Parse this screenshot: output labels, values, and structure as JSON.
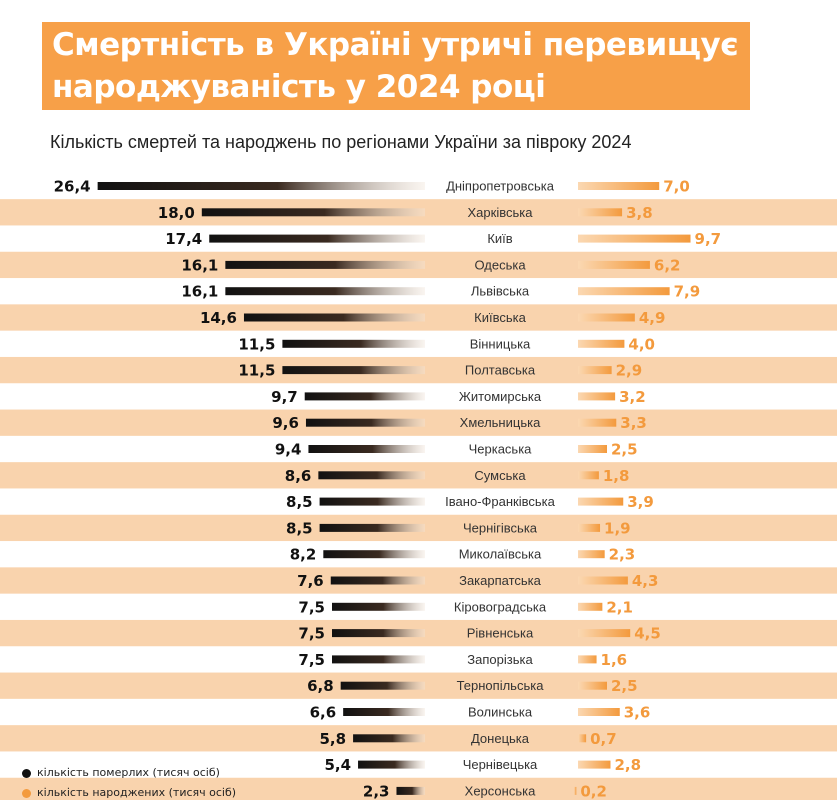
{
  "title": {
    "line1": "Смертність в Україні утричі перевищує",
    "line2": "народжуваність у 2024 році"
  },
  "subtitle": "Кількість смертей та народжень по регіонами України за півроку 2024",
  "colors": {
    "accent": "#f7a048",
    "stripe": "#f9d3ad",
    "deaths": "#111111",
    "births": "#f39a3d"
  },
  "legend": {
    "deaths_label": "кількість померлих (тисяч осіб)",
    "births_label": "кількість народжених (тисяч осіб)"
  },
  "chart_data": {
    "type": "bar",
    "title": "Смертність в Україні утричі перевищує народжуваність у 2024 році",
    "subtitle": "Кількість смертей та народжень по регіонами України за півроку 2024",
    "categories": [
      "Дніпропетровська",
      "Харківська",
      "Київ",
      "Одеська",
      "Львівська",
      "Київська",
      "Вінницька",
      "Полтавська",
      "Житомирська",
      "Хмельницька",
      "Черкаська",
      "Сумська",
      "Івано-Франківська",
      "Чернігівська",
      "Миколаївська",
      "Закарпатська",
      "Кіровоградська",
      "Рівненська",
      "Запорізька",
      "Тернопільська",
      "Волинська",
      "Донецька",
      "Чернівецька",
      "Херсонська"
    ],
    "series": [
      {
        "name": "кількість померлих (тисяч осіб)",
        "values": [
          26.4,
          18.0,
          17.4,
          16.1,
          16.1,
          14.6,
          11.5,
          11.5,
          9.7,
          9.6,
          9.4,
          8.6,
          8.5,
          8.5,
          8.2,
          7.6,
          7.5,
          7.5,
          7.5,
          6.8,
          6.6,
          5.8,
          5.4,
          2.3
        ],
        "labels": [
          "26,4",
          "18,0",
          "17,4",
          "16,1",
          "16,1",
          "14,6",
          "11,5",
          "11,5",
          "9,7",
          "9,6",
          "9,4",
          "8,6",
          "8,5",
          "8,5",
          "8,2",
          "7,6",
          "7,5",
          "7,5",
          "7,5",
          "6,8",
          "6,6",
          "5,8",
          "5,4",
          "2,3"
        ]
      },
      {
        "name": "кількість народжених (тисяч осіб)",
        "values": [
          7.0,
          3.8,
          9.7,
          6.2,
          7.9,
          4.9,
          4.0,
          2.9,
          3.2,
          3.3,
          2.5,
          1.8,
          3.9,
          1.9,
          2.3,
          4.3,
          2.1,
          4.5,
          1.6,
          2.5,
          3.6,
          0.7,
          2.8,
          0.2
        ],
        "labels": [
          "7,0",
          "3,8",
          "9,7",
          "6,2",
          "7,9",
          "4,9",
          "4,0",
          "2,9",
          "3,2",
          "3,3",
          "2,5",
          "1,8",
          "3,9",
          "1,9",
          "2,3",
          "4,3",
          "2,1",
          "4,5",
          "1,6",
          "2,5",
          "3,6",
          "0,7",
          "2,8",
          "0,2"
        ]
      }
    ],
    "unit": "тисяч осіб"
  }
}
